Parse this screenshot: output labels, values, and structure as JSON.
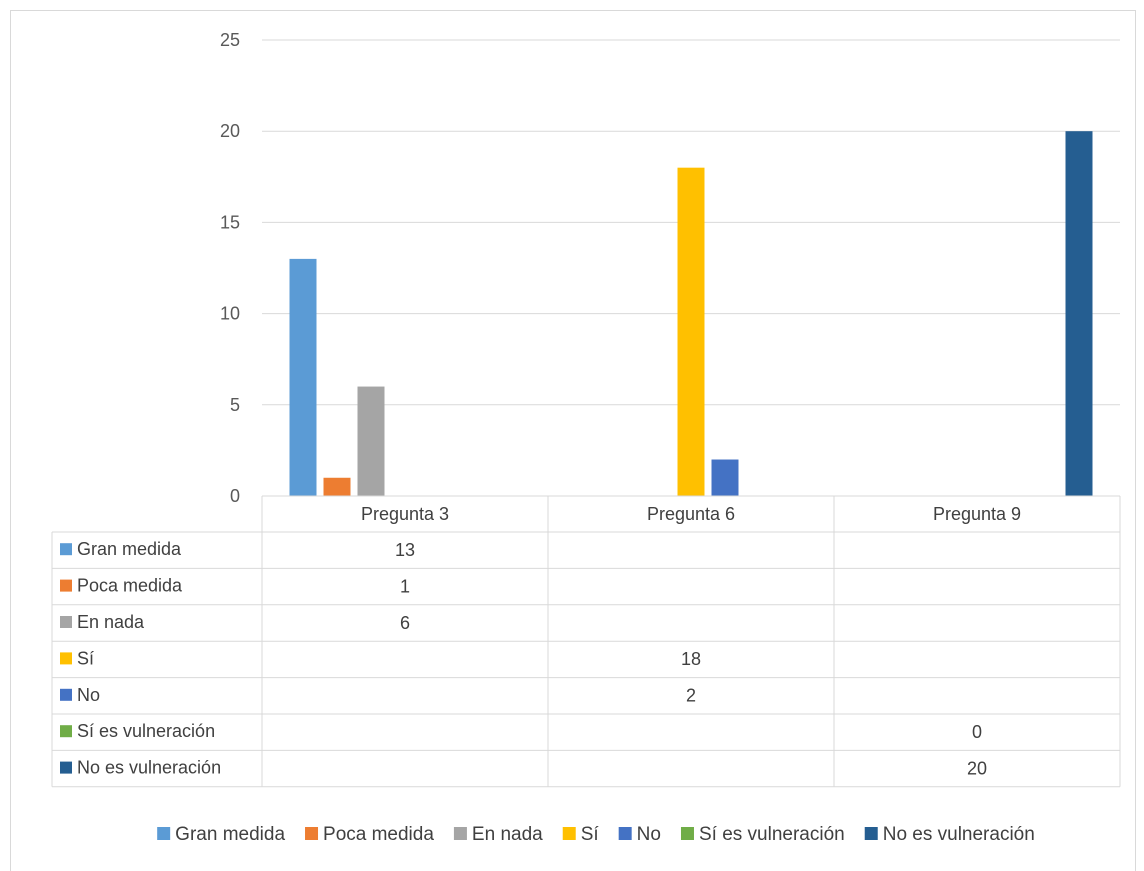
{
  "chart_data": {
    "type": "bar",
    "title": "",
    "xlabel": "",
    "ylabel": "",
    "categories": [
      "Pregunta 3",
      "Pregunta 6",
      "Pregunta 9"
    ],
    "ylim": [
      0,
      25
    ],
    "yticks": [
      0,
      5,
      10,
      15,
      20,
      25
    ],
    "grid": true,
    "legend_position": "bottom",
    "data_table": true,
    "series": [
      {
        "name": "Gran medida",
        "color": "#5b9bd5",
        "values": [
          13,
          null,
          null
        ]
      },
      {
        "name": "Poca medida",
        "color": "#ed7d31",
        "values": [
          1,
          null,
          null
        ]
      },
      {
        "name": "En nada",
        "color": "#a5a5a5",
        "values": [
          6,
          null,
          null
        ]
      },
      {
        "name": "Sí",
        "color": "#ffc000",
        "values": [
          null,
          18,
          null
        ]
      },
      {
        "name": "No",
        "color": "#4472c4",
        "values": [
          null,
          2,
          null
        ]
      },
      {
        "name": "Sí es vulneración",
        "color": "#70ad47",
        "values": [
          null,
          null,
          0
        ]
      },
      {
        "name": "No es vulneración",
        "color": "#255e91",
        "values": [
          null,
          null,
          20
        ]
      }
    ]
  }
}
